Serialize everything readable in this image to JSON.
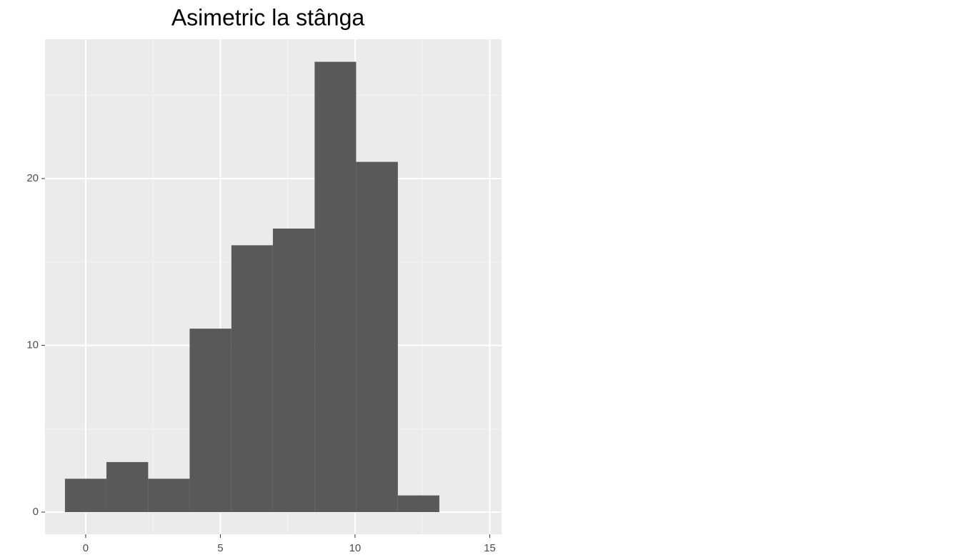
{
  "chart_data": {
    "type": "histogram",
    "title": "Asimetric la stânga",
    "bins": [
      -0.77,
      0.77,
      2.32,
      3.86,
      5.41,
      6.95,
      8.5,
      10.04,
      11.59,
      13.13
    ],
    "counts": [
      2,
      3,
      2,
      11,
      16,
      17,
      27,
      21,
      1
    ],
    "color": "#595959",
    "xlim": [
      -1.51,
      15.44
    ],
    "xticks": [
      0,
      5,
      10,
      15
    ],
    "ylim": [
      -1.33,
      28.35
    ],
    "yticks": [
      0,
      10,
      20
    ],
    "x_minor_grid": [
      2.5,
      7.5,
      12.5
    ],
    "y_minor_grid": [
      5,
      15,
      25
    ],
    "grid": true
  }
}
